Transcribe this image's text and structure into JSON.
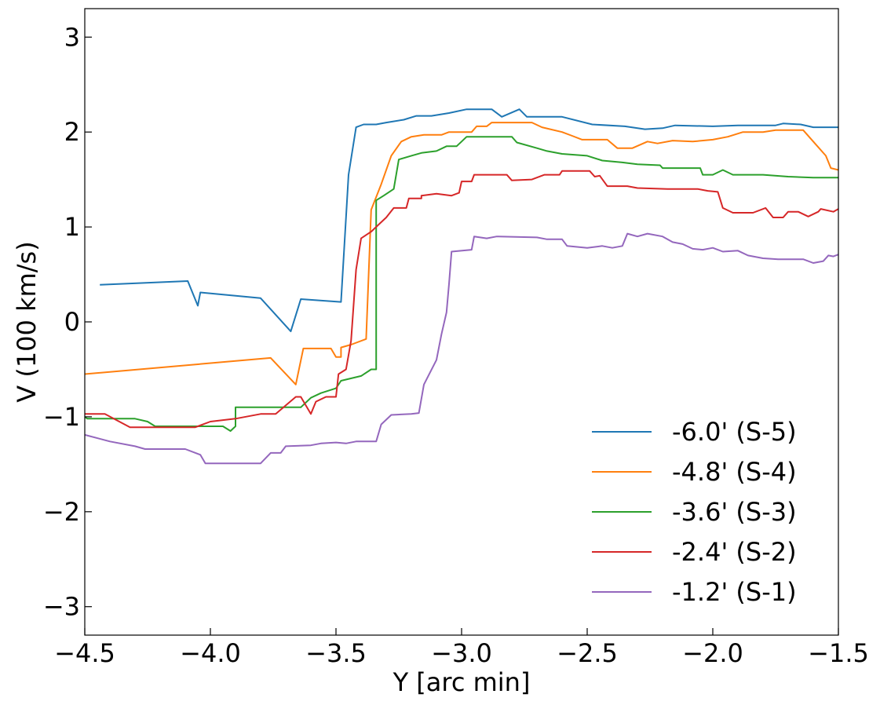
{
  "chart_data": {
    "type": "line",
    "xlabel": "Y [arc min]",
    "ylabel": "V (100 km/s)",
    "xlim": [
      -4.5,
      -1.5
    ],
    "ylim": [
      -3.3,
      3.3
    ],
    "x_ticks": [
      -4.5,
      -4.0,
      -3.5,
      -3.0,
      -2.5,
      -2.0,
      -1.5
    ],
    "x_tick_labels": [
      "−4.5",
      "−4.0",
      "−3.5",
      "−3.0",
      "−2.5",
      "−2.0",
      "−1.5"
    ],
    "y_ticks": [
      -3,
      -2,
      -1,
      0,
      1,
      2,
      3
    ],
    "y_tick_labels": [
      "−3",
      "−2",
      "−1",
      "0",
      "1",
      "2",
      "3"
    ],
    "grid": false,
    "legend_position": "lower-right",
    "series": [
      {
        "name": "-6.0' (S-5)",
        "color": "#1f77b4",
        "points": [
          [
            -4.44,
            0.39
          ],
          [
            -4.09,
            0.43
          ],
          [
            -4.05,
            0.17
          ],
          [
            -4.04,
            0.31
          ],
          [
            -3.8,
            0.25
          ],
          [
            -3.68,
            -0.1
          ],
          [
            -3.64,
            0.24
          ],
          [
            -3.48,
            0.21
          ],
          [
            -3.45,
            1.55
          ],
          [
            -3.42,
            2.05
          ],
          [
            -3.39,
            2.08
          ],
          [
            -3.34,
            2.08
          ],
          [
            -3.3,
            2.1
          ],
          [
            -3.23,
            2.13
          ],
          [
            -3.18,
            2.17
          ],
          [
            -3.12,
            2.17
          ],
          [
            -3.05,
            2.2
          ],
          [
            -2.98,
            2.24
          ],
          [
            -2.88,
            2.24
          ],
          [
            -2.84,
            2.16
          ],
          [
            -2.77,
            2.24
          ],
          [
            -2.74,
            2.16
          ],
          [
            -2.6,
            2.16
          ],
          [
            -2.48,
            2.08
          ],
          [
            -2.35,
            2.06
          ],
          [
            -2.27,
            2.03
          ],
          [
            -2.2,
            2.04
          ],
          [
            -2.15,
            2.07
          ],
          [
            -2.0,
            2.06
          ],
          [
            -1.9,
            2.07
          ],
          [
            -1.75,
            2.07
          ],
          [
            -1.72,
            2.09
          ],
          [
            -1.65,
            2.08
          ],
          [
            -1.6,
            2.05
          ],
          [
            -1.5,
            2.05
          ]
        ]
      },
      {
        "name": "-4.8' (S-4)",
        "color": "#ff7f0e",
        "points": [
          [
            -4.5,
            -0.55
          ],
          [
            -3.76,
            -0.38
          ],
          [
            -3.66,
            -0.66
          ],
          [
            -3.63,
            -0.28
          ],
          [
            -3.52,
            -0.28
          ],
          [
            -3.5,
            -0.37
          ],
          [
            -3.48,
            -0.37
          ],
          [
            -3.48,
            -0.27
          ],
          [
            -3.44,
            -0.24
          ],
          [
            -3.38,
            -0.18
          ],
          [
            -3.36,
            1.18
          ],
          [
            -3.32,
            1.45
          ],
          [
            -3.28,
            1.75
          ],
          [
            -3.24,
            1.9
          ],
          [
            -3.2,
            1.95
          ],
          [
            -3.15,
            1.97
          ],
          [
            -3.08,
            1.97
          ],
          [
            -3.05,
            2.0
          ],
          [
            -2.96,
            2.0
          ],
          [
            -2.94,
            2.06
          ],
          [
            -2.9,
            2.06
          ],
          [
            -2.88,
            2.1
          ],
          [
            -2.72,
            2.1
          ],
          [
            -2.68,
            2.05
          ],
          [
            -2.6,
            2.0
          ],
          [
            -2.56,
            1.96
          ],
          [
            -2.52,
            1.92
          ],
          [
            -2.42,
            1.92
          ],
          [
            -2.38,
            1.83
          ],
          [
            -2.32,
            1.83
          ],
          [
            -2.26,
            1.9
          ],
          [
            -2.22,
            1.88
          ],
          [
            -2.16,
            1.91
          ],
          [
            -2.08,
            1.9
          ],
          [
            -2.0,
            1.92
          ],
          [
            -1.94,
            1.95
          ],
          [
            -1.88,
            2.0
          ],
          [
            -1.8,
            2.0
          ],
          [
            -1.75,
            2.02
          ],
          [
            -1.64,
            2.02
          ],
          [
            -1.6,
            1.9
          ],
          [
            -1.55,
            1.75
          ],
          [
            -1.53,
            1.62
          ],
          [
            -1.5,
            1.6
          ]
        ]
      },
      {
        "name": "-3.6' (S-3)",
        "color": "#2ca02c",
        "points": [
          [
            -4.5,
            -1.0
          ],
          [
            -4.49,
            -1.02
          ],
          [
            -4.3,
            -1.02
          ],
          [
            -4.25,
            -1.05
          ],
          [
            -4.22,
            -1.1
          ],
          [
            -3.95,
            -1.1
          ],
          [
            -3.92,
            -1.15
          ],
          [
            -3.9,
            -1.1
          ],
          [
            -3.9,
            -0.9
          ],
          [
            -3.64,
            -0.9
          ],
          [
            -3.6,
            -0.8
          ],
          [
            -3.56,
            -0.75
          ],
          [
            -3.5,
            -0.7
          ],
          [
            -3.48,
            -0.62
          ],
          [
            -3.4,
            -0.57
          ],
          [
            -3.36,
            -0.5
          ],
          [
            -3.34,
            -0.5
          ],
          [
            -3.34,
            1.28
          ],
          [
            -3.31,
            1.33
          ],
          [
            -3.27,
            1.4
          ],
          [
            -3.25,
            1.71
          ],
          [
            -3.2,
            1.75
          ],
          [
            -3.16,
            1.78
          ],
          [
            -3.1,
            1.8
          ],
          [
            -3.06,
            1.85
          ],
          [
            -3.02,
            1.85
          ],
          [
            -3.0,
            1.9
          ],
          [
            -2.98,
            1.95
          ],
          [
            -2.8,
            1.95
          ],
          [
            -2.78,
            1.89
          ],
          [
            -2.7,
            1.83
          ],
          [
            -2.66,
            1.8
          ],
          [
            -2.6,
            1.77
          ],
          [
            -2.5,
            1.75
          ],
          [
            -2.44,
            1.7
          ],
          [
            -2.36,
            1.68
          ],
          [
            -2.3,
            1.66
          ],
          [
            -2.21,
            1.65
          ],
          [
            -2.2,
            1.62
          ],
          [
            -2.05,
            1.62
          ],
          [
            -2.04,
            1.55
          ],
          [
            -2.0,
            1.55
          ],
          [
            -1.96,
            1.6
          ],
          [
            -1.92,
            1.55
          ],
          [
            -1.8,
            1.55
          ],
          [
            -1.7,
            1.53
          ],
          [
            -1.6,
            1.52
          ],
          [
            -1.5,
            1.52
          ]
        ]
      },
      {
        "name": "-2.4' (S-2)",
        "color": "#d62728",
        "points": [
          [
            -4.5,
            -0.97
          ],
          [
            -4.42,
            -0.97
          ],
          [
            -4.32,
            -1.11
          ],
          [
            -4.06,
            -1.11
          ],
          [
            -4.0,
            -1.05
          ],
          [
            -3.9,
            -1.02
          ],
          [
            -3.8,
            -0.97
          ],
          [
            -3.74,
            -0.97
          ],
          [
            -3.66,
            -0.79
          ],
          [
            -3.64,
            -0.79
          ],
          [
            -3.6,
            -0.97
          ],
          [
            -3.58,
            -0.84
          ],
          [
            -3.54,
            -0.79
          ],
          [
            -3.5,
            -0.79
          ],
          [
            -3.49,
            -0.55
          ],
          [
            -3.46,
            -0.5
          ],
          [
            -3.44,
            -0.2
          ],
          [
            -3.42,
            0.55
          ],
          [
            -3.4,
            0.88
          ],
          [
            -3.36,
            0.95
          ],
          [
            -3.32,
            1.05
          ],
          [
            -3.3,
            1.1
          ],
          [
            -3.27,
            1.2
          ],
          [
            -3.22,
            1.2
          ],
          [
            -3.21,
            1.3
          ],
          [
            -3.16,
            1.3
          ],
          [
            -3.16,
            1.33
          ],
          [
            -3.1,
            1.35
          ],
          [
            -3.04,
            1.33
          ],
          [
            -3.01,
            1.36
          ],
          [
            -3.0,
            1.48
          ],
          [
            -2.96,
            1.48
          ],
          [
            -2.95,
            1.55
          ],
          [
            -2.82,
            1.55
          ],
          [
            -2.8,
            1.49
          ],
          [
            -2.72,
            1.5
          ],
          [
            -2.67,
            1.55
          ],
          [
            -2.61,
            1.55
          ],
          [
            -2.6,
            1.59
          ],
          [
            -2.49,
            1.59
          ],
          [
            -2.47,
            1.53
          ],
          [
            -2.45,
            1.54
          ],
          [
            -2.42,
            1.43
          ],
          [
            -2.34,
            1.43
          ],
          [
            -2.3,
            1.41
          ],
          [
            -2.18,
            1.4
          ],
          [
            -2.06,
            1.4
          ],
          [
            -2.02,
            1.38
          ],
          [
            -1.98,
            1.37
          ],
          [
            -1.96,
            1.2
          ],
          [
            -1.92,
            1.15
          ],
          [
            -1.84,
            1.15
          ],
          [
            -1.79,
            1.2
          ],
          [
            -1.76,
            1.1
          ],
          [
            -1.72,
            1.1
          ],
          [
            -1.7,
            1.16
          ],
          [
            -1.66,
            1.16
          ],
          [
            -1.62,
            1.11
          ],
          [
            -1.58,
            1.16
          ],
          [
            -1.57,
            1.19
          ],
          [
            -1.52,
            1.16
          ],
          [
            -1.5,
            1.19
          ]
        ]
      },
      {
        "name": "-1.2' (S-1)",
        "color": "#9467bd",
        "points": [
          [
            -4.5,
            -1.19
          ],
          [
            -4.4,
            -1.26
          ],
          [
            -4.3,
            -1.31
          ],
          [
            -4.26,
            -1.34
          ],
          [
            -4.1,
            -1.34
          ],
          [
            -4.04,
            -1.4
          ],
          [
            -4.02,
            -1.49
          ],
          [
            -3.8,
            -1.49
          ],
          [
            -3.76,
            -1.38
          ],
          [
            -3.72,
            -1.38
          ],
          [
            -3.7,
            -1.31
          ],
          [
            -3.6,
            -1.3
          ],
          [
            -3.56,
            -1.28
          ],
          [
            -3.5,
            -1.27
          ],
          [
            -3.46,
            -1.28
          ],
          [
            -3.42,
            -1.26
          ],
          [
            -3.34,
            -1.26
          ],
          [
            -3.32,
            -1.08
          ],
          [
            -3.28,
            -0.98
          ],
          [
            -3.2,
            -0.97
          ],
          [
            -3.17,
            -0.96
          ],
          [
            -3.15,
            -0.66
          ],
          [
            -3.1,
            -0.4
          ],
          [
            -3.08,
            -0.13
          ],
          [
            -3.06,
            0.1
          ],
          [
            -3.05,
            0.4
          ],
          [
            -3.04,
            0.74
          ],
          [
            -2.96,
            0.76
          ],
          [
            -2.95,
            0.9
          ],
          [
            -2.9,
            0.88
          ],
          [
            -2.86,
            0.9
          ],
          [
            -2.7,
            0.89
          ],
          [
            -2.66,
            0.87
          ],
          [
            -2.6,
            0.87
          ],
          [
            -2.58,
            0.8
          ],
          [
            -2.5,
            0.78
          ],
          [
            -2.44,
            0.8
          ],
          [
            -2.4,
            0.78
          ],
          [
            -2.36,
            0.8
          ],
          [
            -2.34,
            0.93
          ],
          [
            -2.3,
            0.9
          ],
          [
            -2.26,
            0.93
          ],
          [
            -2.2,
            0.9
          ],
          [
            -2.16,
            0.84
          ],
          [
            -2.12,
            0.82
          ],
          [
            -2.08,
            0.77
          ],
          [
            -2.04,
            0.76
          ],
          [
            -2.0,
            0.78
          ],
          [
            -1.96,
            0.74
          ],
          [
            -1.9,
            0.75
          ],
          [
            -1.86,
            0.7
          ],
          [
            -1.8,
            0.67
          ],
          [
            -1.74,
            0.66
          ],
          [
            -1.64,
            0.66
          ],
          [
            -1.6,
            0.62
          ],
          [
            -1.56,
            0.64
          ],
          [
            -1.54,
            0.7
          ],
          [
            -1.52,
            0.69
          ],
          [
            -1.5,
            0.71
          ]
        ]
      }
    ]
  }
}
